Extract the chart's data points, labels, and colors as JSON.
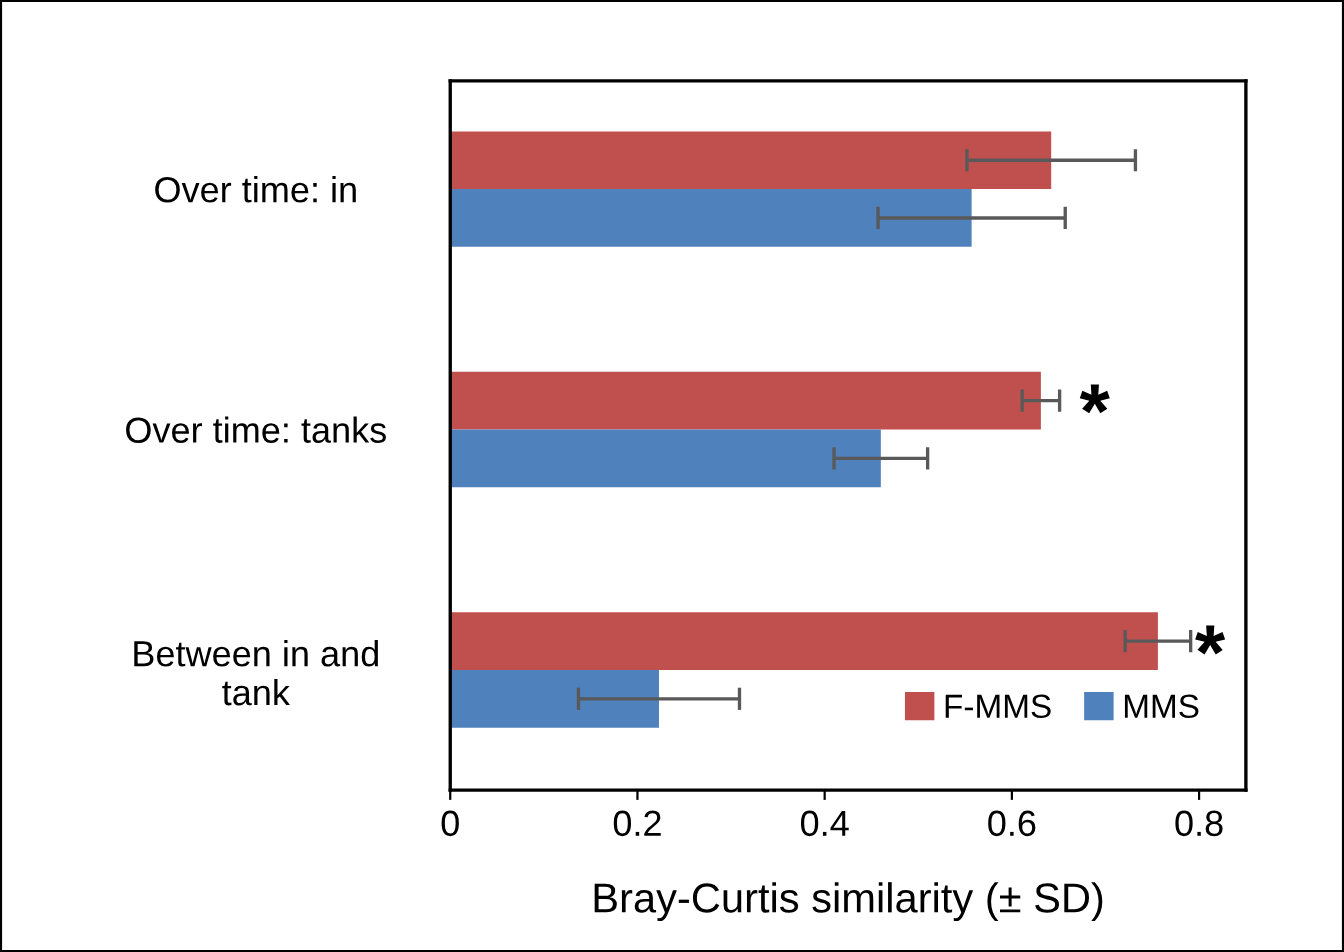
{
  "chart_data": {
    "type": "bar",
    "orientation": "horizontal",
    "xlabel": "Bray-Curtis similarity (± SD)",
    "categories": [
      "Over time: in",
      "Over time: tanks",
      "Between in and\ntank"
    ],
    "series": [
      {
        "name": "F-MMS",
        "color": "#c0504d",
        "values": [
          0.642,
          0.631,
          0.756
        ],
        "errors": [
          0.09,
          0.02,
          0.035
        ]
      },
      {
        "name": "MMS",
        "color": "#4f81bd",
        "values": [
          0.557,
          0.46,
          0.223
        ],
        "errors": [
          0.1,
          0.05,
          0.086
        ]
      }
    ],
    "xlim": [
      0,
      0.85
    ],
    "xticks": [
      0,
      0.2,
      0.4,
      0.6,
      0.8
    ],
    "grid": false,
    "legend": "bottom right",
    "annotations": [
      "*",
      "*"
    ]
  }
}
